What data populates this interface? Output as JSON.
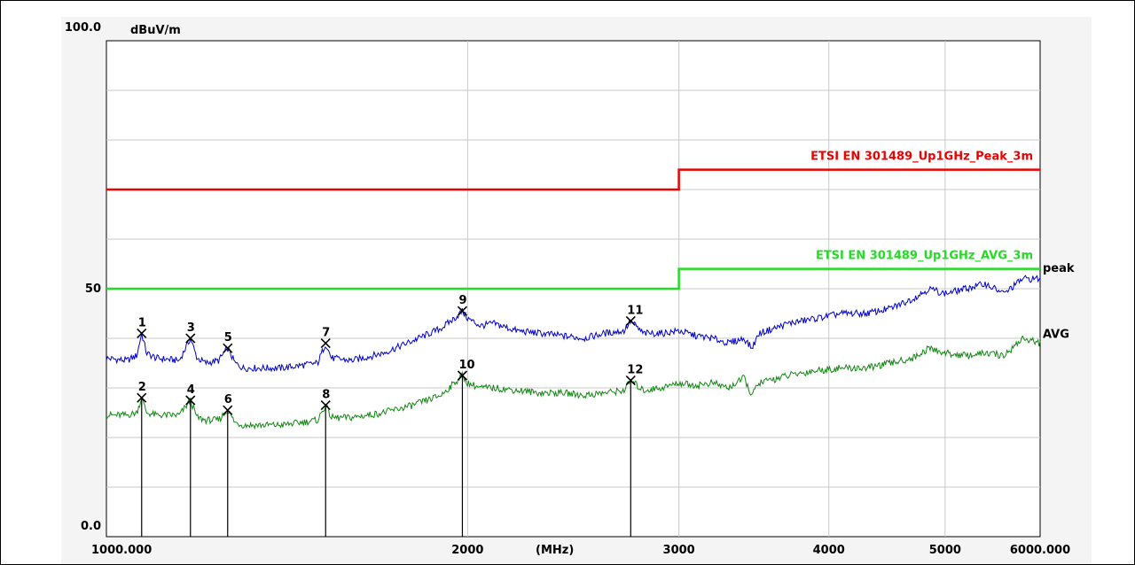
{
  "chart_data": {
    "type": "line",
    "x_scale": "log",
    "xlim": [
      1000,
      6000
    ],
    "ylim": [
      0,
      100
    ],
    "ylabel": "dBuV/m",
    "xlabel": "(MHz)",
    "y_tick_labels": [
      {
        "value": 100,
        "text": "100.0"
      },
      {
        "value": 50,
        "text": "50"
      },
      {
        "value": 0,
        "text": "0.0"
      }
    ],
    "x_tick_labels": [
      {
        "value": 1000,
        "text": "1000.000"
      },
      {
        "value": 2000,
        "text": "2000"
      },
      {
        "value": 3000,
        "text": "3000"
      },
      {
        "value": 4000,
        "text": "4000"
      },
      {
        "value": 5000,
        "text": "5000"
      },
      {
        "value": 6000,
        "text": "6000.000"
      }
    ],
    "x_grid": [
      1000,
      2000,
      3000,
      4000,
      5000,
      6000
    ],
    "y_grid": [
      0,
      10,
      20,
      30,
      40,
      50,
      60,
      70,
      80,
      90,
      100
    ],
    "grid": true,
    "limits": [
      {
        "name": "ETSI EN 301489_Up1GHz_Peak_3m",
        "color": "#ee0000",
        "x": [
          1000,
          3000,
          3000,
          6000
        ],
        "y": [
          70,
          70,
          74,
          74
        ]
      },
      {
        "name": "ETSI EN 301489_Up1GHz_AVG_3m",
        "color": "#22dd22",
        "x": [
          1000,
          3000,
          3000,
          6000
        ],
        "y": [
          50,
          50,
          54,
          54
        ]
      }
    ],
    "series": [
      {
        "name": "peak",
        "color": "#0000cc",
        "x": [
          1000,
          1040,
          1060,
          1070,
          1080,
          1100,
          1150,
          1175,
          1190,
          1210,
          1240,
          1262,
          1280,
          1300,
          1350,
          1400,
          1450,
          1500,
          1523,
          1540,
          1600,
          1700,
          1800,
          1900,
          1950,
          1980,
          2000,
          2050,
          2100,
          2200,
          2300,
          2400,
          2500,
          2600,
          2700,
          2735,
          2800,
          2900,
          3000,
          3100,
          3200,
          3300,
          3400,
          3450,
          3500,
          3700,
          3900,
          4100,
          4300,
          4500,
          4700,
          4850,
          5000,
          5200,
          5400,
          5600,
          5800,
          6000
        ],
        "y": [
          36,
          35.5,
          36.5,
          41,
          37,
          36,
          35.5,
          40,
          36,
          35,
          35.5,
          38,
          35,
          34,
          34,
          34,
          34.5,
          35,
          39,
          36,
          35.5,
          37,
          39.5,
          42,
          44,
          45.5,
          44,
          42.5,
          43,
          41.5,
          41,
          40.5,
          40,
          41,
          41.5,
          43.5,
          41,
          41,
          41.5,
          40.5,
          40,
          39,
          40,
          38,
          41,
          43,
          44,
          45,
          45,
          46,
          48,
          50,
          49,
          50,
          51,
          49,
          52,
          52
        ]
      },
      {
        "name": "AVG",
        "color": "#118811",
        "x": [
          1000,
          1040,
          1060,
          1070,
          1080,
          1100,
          1150,
          1175,
          1190,
          1210,
          1240,
          1262,
          1280,
          1300,
          1350,
          1400,
          1450,
          1500,
          1523,
          1540,
          1600,
          1700,
          1800,
          1900,
          1950,
          1980,
          2000,
          2050,
          2100,
          2200,
          2300,
          2400,
          2500,
          2600,
          2700,
          2735,
          2800,
          2900,
          3000,
          3100,
          3200,
          3300,
          3400,
          3450,
          3500,
          3700,
          3900,
          4100,
          4300,
          4500,
          4700,
          4850,
          5000,
          5200,
          5400,
          5600,
          5800,
          6000
        ],
        "y": [
          24.5,
          24.5,
          25,
          28,
          25,
          24.5,
          24.5,
          27.5,
          24,
          23.5,
          23.5,
          25.5,
          23,
          22.5,
          22.5,
          22.5,
          23,
          23.5,
          26.5,
          24,
          24,
          25,
          26.5,
          28.5,
          31,
          32.5,
          31,
          30,
          30,
          29.5,
          29,
          29,
          28.5,
          29,
          29.5,
          31.5,
          29.5,
          30,
          31,
          30.5,
          31,
          30,
          32,
          28.5,
          31,
          32.5,
          33.5,
          34,
          34,
          35,
          36,
          38,
          37,
          36.5,
          37,
          36.5,
          40,
          39
        ]
      }
    ],
    "series_end_labels": [
      "peak",
      "AVG"
    ],
    "markers": [
      {
        "label": "1",
        "x": 1070,
        "y": 41
      },
      {
        "label": "2",
        "x": 1070,
        "y": 28
      },
      {
        "label": "3",
        "x": 1175,
        "y": 40
      },
      {
        "label": "4",
        "x": 1175,
        "y": 27.5
      },
      {
        "label": "5",
        "x": 1262,
        "y": 38
      },
      {
        "label": "6",
        "x": 1262,
        "y": 25.5
      },
      {
        "label": "7",
        "x": 1523,
        "y": 39
      },
      {
        "label": "8",
        "x": 1523,
        "y": 26.5
      },
      {
        "label": "9",
        "x": 1980,
        "y": 45.5
      },
      {
        "label": "10",
        "x": 1980,
        "y": 32.5
      },
      {
        "label": "11",
        "x": 2735,
        "y": 43.5
      },
      {
        "label": "12",
        "x": 2735,
        "y": 31.5
      }
    ]
  }
}
